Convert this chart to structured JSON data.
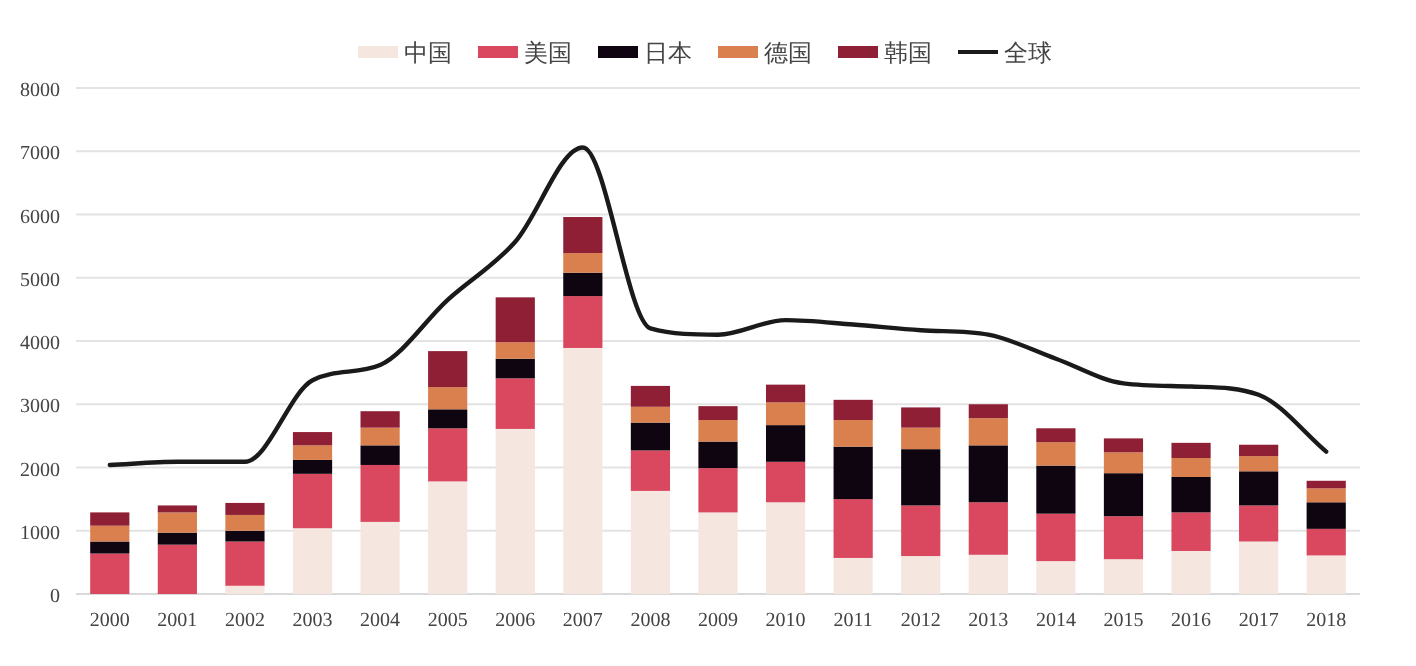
{
  "chart_data": {
    "type": "bar",
    "stacked": true,
    "grid": "y",
    "legend": "top",
    "categories": [
      "2000",
      "2001",
      "2002",
      "2003",
      "2004",
      "2005",
      "2006",
      "2007",
      "2008",
      "2009",
      "2010",
      "2011",
      "2012",
      "2013",
      "2014",
      "2015",
      "2016",
      "2017",
      "2018"
    ],
    "ylim": [
      0,
      8000
    ],
    "yticks": [
      0,
      1000,
      2000,
      3000,
      4000,
      5000,
      6000,
      7000,
      8000
    ],
    "series": [
      {
        "name": "中国",
        "color": "#f5e6e0",
        "values": [
          null,
          null,
          130,
          1040,
          1140,
          1780,
          2610,
          3890,
          1630,
          1290,
          1450,
          570,
          600,
          620,
          520,
          550,
          680,
          830,
          610
        ]
      },
      {
        "name": "美国",
        "color": "#d9485e",
        "values": [
          640,
          780,
          700,
          860,
          900,
          840,
          800,
          820,
          640,
          700,
          640,
          930,
          800,
          830,
          750,
          680,
          610,
          570,
          420
        ]
      },
      {
        "name": "日本",
        "color": "#0f0510",
        "values": [
          190,
          190,
          170,
          220,
          310,
          300,
          310,
          370,
          440,
          420,
          580,
          830,
          890,
          900,
          760,
          680,
          560,
          540,
          420
        ]
      },
      {
        "name": "德国",
        "color": "#d9804e",
        "values": [
          250,
          320,
          250,
          230,
          280,
          350,
          260,
          310,
          250,
          340,
          360,
          420,
          340,
          430,
          370,
          330,
          300,
          240,
          220
        ]
      },
      {
        "name": "韩国",
        "color": "#8e1f35",
        "values": [
          210,
          110,
          190,
          210,
          260,
          570,
          710,
          570,
          330,
          220,
          280,
          320,
          320,
          220,
          220,
          220,
          240,
          180,
          120
        ]
      },
      {
        "name": "全球",
        "type": "line",
        "color": "#1a1a1a",
        "values": [
          2040,
          2090,
          2090,
          3380,
          3620,
          4650,
          5570,
          7060,
          4200,
          4100,
          4330,
          4260,
          4170,
          4100,
          3720,
          3330,
          3280,
          3150,
          2250
        ]
      }
    ]
  }
}
